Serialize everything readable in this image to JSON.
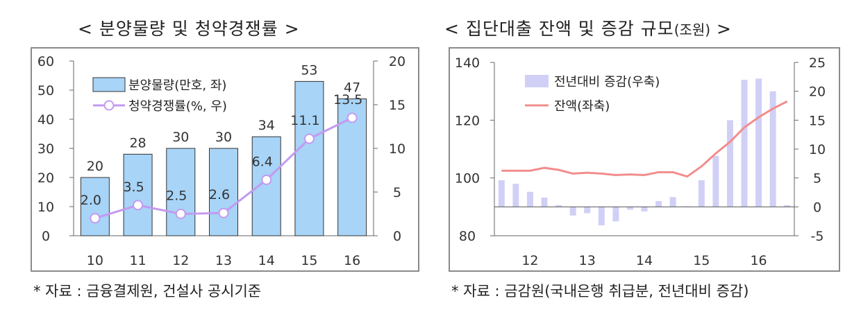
{
  "left": {
    "title": "< 분양물량 및 청약경쟁률 >",
    "source": "* 자료 : 금융결제원, 건설사 공시기준"
  },
  "right": {
    "title_main": "< 집단대출 잔액 및 증감 규모",
    "title_unit": "(조원)",
    "title_end": " >",
    "source": "* 자료 : 금감원(국내은행 취급분, 전년대비 증감)"
  },
  "chart_data": [
    {
      "type": "bar+line",
      "title": "< 분양물량 및 청약경쟁률 >",
      "categories": [
        "10",
        "11",
        "12",
        "13",
        "14",
        "15",
        "16"
      ],
      "series": [
        {
          "name": "분양물량(만호, 좌)",
          "type": "bar",
          "axis": "left",
          "values": [
            20,
            28,
            30,
            30,
            34,
            53,
            47
          ],
          "labels": [
            "20",
            "28",
            "30",
            "30",
            "34",
            "53",
            "47"
          ],
          "color": "#a7d4f7"
        },
        {
          "name": "청약경쟁률(%, 우)",
          "type": "line",
          "axis": "right",
          "values": [
            2.0,
            3.5,
            2.5,
            2.6,
            6.4,
            11.1,
            13.5
          ],
          "labels": [
            "2.0",
            "3.5",
            "2.5",
            "2.6",
            "6.4",
            "11.1",
            "13.5"
          ],
          "color": "#c39af0"
        }
      ],
      "y_left": {
        "ticks": [
          "0",
          "10",
          "20",
          "30",
          "40",
          "50",
          "60"
        ],
        "range": [
          0,
          60
        ]
      },
      "y_right": {
        "ticks": [
          "0",
          "5",
          "10",
          "15",
          "20"
        ],
        "range": [
          0,
          20
        ]
      },
      "legend_position": "top-left",
      "grid": false
    },
    {
      "type": "bar+line",
      "title": "< 집단대출 잔액 및 증감 규모(조원) >",
      "x_labels": [
        "12",
        "13",
        "14",
        "15",
        "16"
      ],
      "series": [
        {
          "name": "전년대비 증감(우축)",
          "type": "bar",
          "axis": "right",
          "values": [
            4.6,
            4.0,
            2.6,
            1.6,
            0.3,
            -1.5,
            -1.1,
            -3.2,
            -2.5,
            -0.5,
            -0.8,
            1.0,
            1.7,
            0.1,
            4.6,
            8.8,
            15.0,
            22.0,
            22.2,
            20.0,
            0.3
          ],
          "color": "#d0d0f6"
        },
        {
          "name": "잔액(좌축)",
          "type": "line",
          "axis": "left",
          "values": [
            102.5,
            102.5,
            102.5,
            103.5,
            102.8,
            101.5,
            101.8,
            101.5,
            101.0,
            101.2,
            101.0,
            102.0,
            102.0,
            100.5,
            104.0,
            108.5,
            112.5,
            117.5,
            121.0,
            124.0,
            126.5
          ],
          "color": "#f28d8d"
        }
      ],
      "y_left": {
        "ticks": [
          "80",
          "100",
          "120",
          "140"
        ],
        "range": [
          80,
          140
        ]
      },
      "y_right": {
        "ticks": [
          "-5",
          "0",
          "5",
          "10",
          "15",
          "20",
          "25"
        ],
        "range": [
          -5,
          25
        ]
      },
      "legend_position": "top-left",
      "grid": false
    }
  ]
}
